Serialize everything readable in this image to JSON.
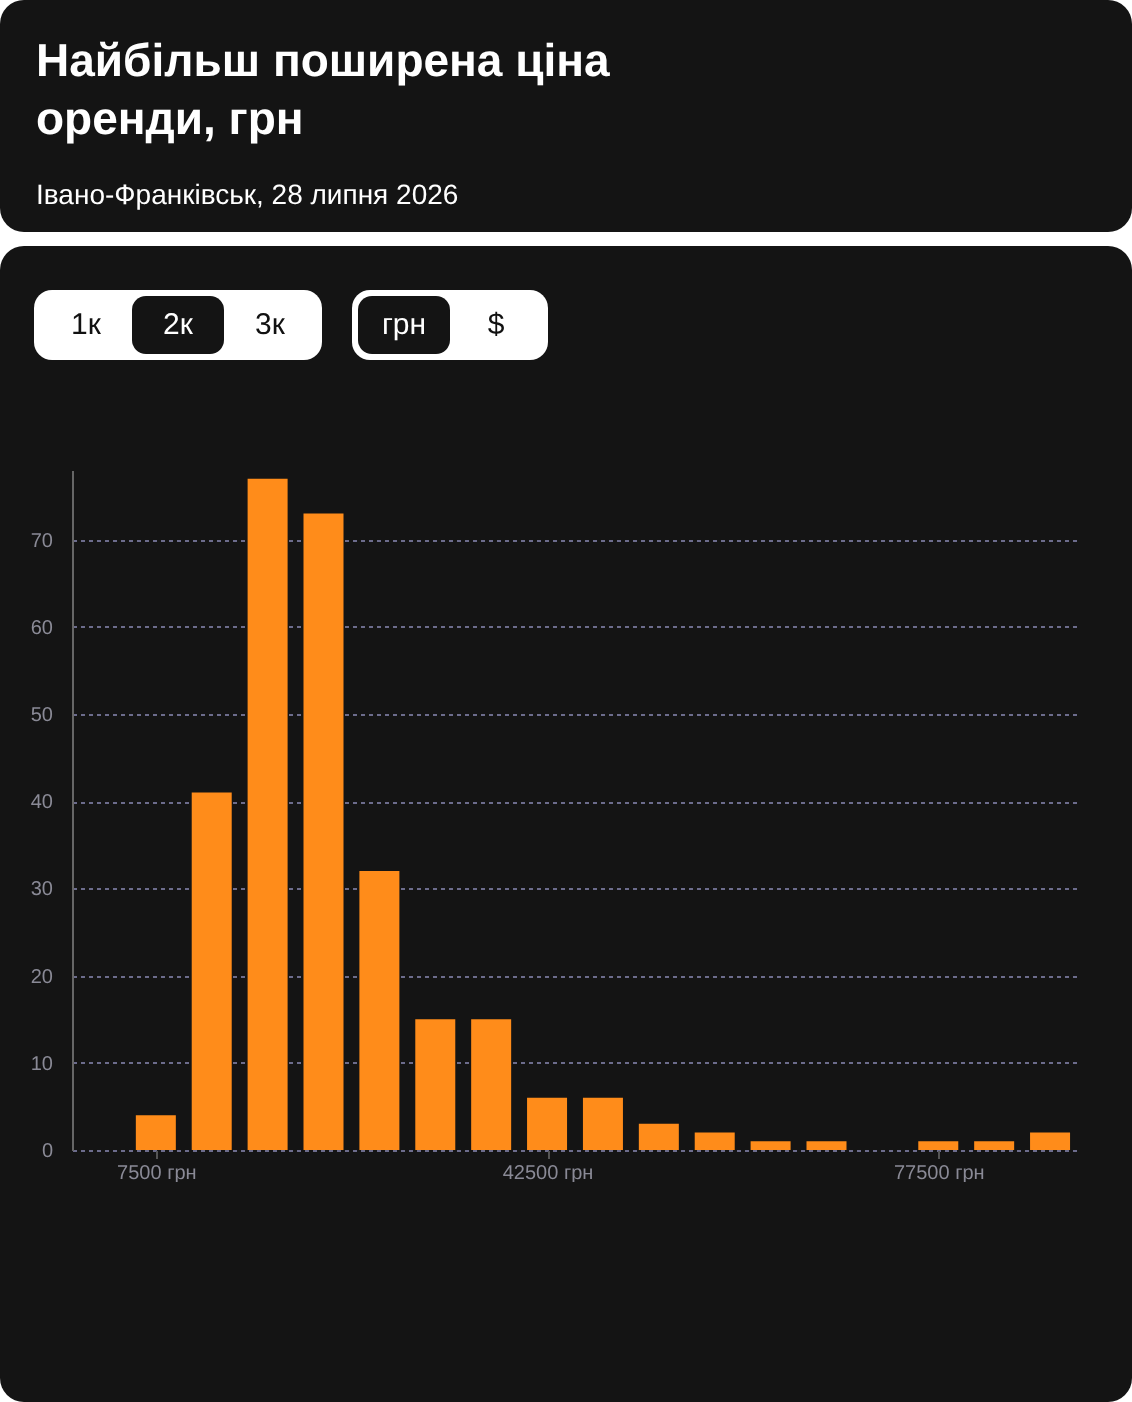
{
  "chart_data": {
    "type": "bar",
    "title": "Найбільш поширена ціна оренди, грн",
    "subtitle": "Івано-Франківськ, 28 липня 2026",
    "annotations": [
      "1к",
      "2к",
      "3к",
      "грн",
      "$"
    ],
    "x": [
      7500,
      12500,
      17500,
      22500,
      27500,
      32500,
      37500,
      42500,
      47500,
      52500,
      57500,
      62500,
      67500,
      72500,
      77500,
      82500,
      87500
    ],
    "values": [
      4,
      41,
      77,
      73,
      32,
      15,
      15,
      6,
      6,
      3,
      2,
      1,
      1,
      0,
      1,
      1,
      2
    ],
    "color": "#ff8c1a",
    "xlim": [
      0,
      90000
    ],
    "xticks": [
      {
        "value": 7500,
        "label": "7500 грн"
      },
      {
        "value": 42500,
        "label": "42500 грн"
      },
      {
        "value": 77500,
        "label": "77500 грн"
      }
    ],
    "ylim": [
      0,
      78
    ],
    "yticks": [
      0,
      10,
      20,
      30,
      40,
      50,
      60,
      70
    ],
    "grid": "y"
  }
}
